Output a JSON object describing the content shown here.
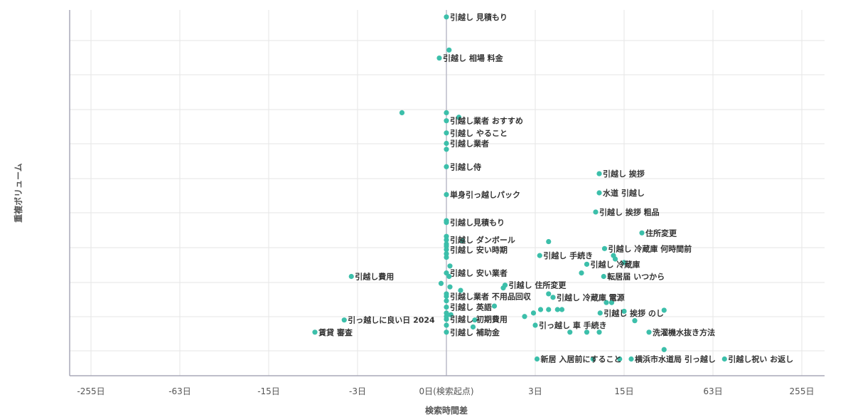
{
  "chart_data": {
    "type": "scatter",
    "title": "",
    "xlabel": "検索時間差",
    "ylabel": "重複ボリューム",
    "x_ticks": [
      {
        "label": "-255日",
        "v": -4
      },
      {
        "label": "-63日",
        "v": -3
      },
      {
        "label": "-15日",
        "v": -2
      },
      {
        "label": "-3日",
        "v": -1
      },
      {
        "label": "0日(検索起点)",
        "v": 0
      },
      {
        "label": "3日",
        "v": 1
      },
      {
        "label": "15日",
        "v": 2
      },
      {
        "label": "63日",
        "v": 3
      },
      {
        "label": "255日",
        "v": 4
      }
    ],
    "xlim": [
      -4.25,
      4.25
    ],
    "ylim": [
      0,
      10.5
    ],
    "grid": true,
    "point_color": "#3cbfaa",
    "labeled_points": [
      {
        "label": "引越し 見積もり",
        "x": 0.0,
        "y": 10.3
      },
      {
        "label": "引越し 相場 料金",
        "x": -0.08,
        "y": 9.12
      },
      {
        "label": "引越し業者 おすすめ",
        "x": 0.0,
        "y": 7.32
      },
      {
        "label": "引越し やること",
        "x": 0.0,
        "y": 6.97
      },
      {
        "label": "引越し業者",
        "x": 0.0,
        "y": 6.67
      },
      {
        "label": "引越し侍",
        "x": 0.0,
        "y": 6.0
      },
      {
        "label": "単身引っ越しパック",
        "x": 0.0,
        "y": 5.2
      },
      {
        "label": "引越し 挨拶",
        "x": 1.72,
        "y": 5.8
      },
      {
        "label": "水道 引越し",
        "x": 1.72,
        "y": 5.25
      },
      {
        "label": "引越し 挨拶 粗品",
        "x": 1.68,
        "y": 4.7
      },
      {
        "label": "引越し見積もり",
        "x": 0.0,
        "y": 4.4
      },
      {
        "label": "住所変更",
        "x": 2.2,
        "y": 4.1
      },
      {
        "label": "引越し ダンボール",
        "x": 0.0,
        "y": 3.9
      },
      {
        "label": "引越し 冷蔵庫 何時間前",
        "x": 1.78,
        "y": 3.65
      },
      {
        "label": "引越し 安い時期",
        "x": 0.0,
        "y": 3.62
      },
      {
        "label": "引越し 手続き",
        "x": 1.05,
        "y": 3.45
      },
      {
        "label": "引越し 冷蔵庫",
        "x": 1.58,
        "y": 3.2
      },
      {
        "label": "引越し費用",
        "x": -1.07,
        "y": 2.85
      },
      {
        "label": "引越し 安い業者",
        "x": 0.0,
        "y": 2.95
      },
      {
        "label": "転居届 いつから",
        "x": 1.77,
        "y": 2.85
      },
      {
        "label": "引越し 住所変更",
        "x": 0.66,
        "y": 2.6
      },
      {
        "label": "引越し業者 不用品回収",
        "x": 0.0,
        "y": 2.28
      },
      {
        "label": "引越し 冷蔵庫 電源",
        "x": 1.2,
        "y": 2.25
      },
      {
        "label": "引越し 英語",
        "x": 0.0,
        "y": 1.97
      },
      {
        "label": "引越し 挨拶 のし",
        "x": 1.73,
        "y": 1.8
      },
      {
        "label": "引っ越しに良い日 2024",
        "x": -1.15,
        "y": 1.6
      },
      {
        "label": "引越し 初期費用",
        "x": 0.0,
        "y": 1.62
      },
      {
        "label": "引っ越し 車 手続き",
        "x": 1.0,
        "y": 1.45
      },
      {
        "label": "賃貸 審査",
        "x": -1.48,
        "y": 1.25
      },
      {
        "label": "引越し 補助金",
        "x": 0.0,
        "y": 1.25
      },
      {
        "label": "洗濯機水抜き方法",
        "x": 2.28,
        "y": 1.25
      },
      {
        "label": "新居 入居前にすること",
        "x": 1.02,
        "y": 0.48
      },
      {
        "label": "横浜市水道局 引っ越し",
        "x": 2.08,
        "y": 0.48
      },
      {
        "label": "引越し祝い お返し",
        "x": 3.13,
        "y": 0.48
      }
    ],
    "unlabeled_points": [
      {
        "x": 0.03,
        "y": 9.35
      },
      {
        "x": -0.5,
        "y": 7.55
      },
      {
        "x": 0.0,
        "y": 7.55
      },
      {
        "x": 0.14,
        "y": 7.42
      },
      {
        "x": 0.0,
        "y": 6.5
      },
      {
        "x": 0.0,
        "y": 4.45
      },
      {
        "x": 0.0,
        "y": 4.0
      },
      {
        "x": 0.0,
        "y": 3.78
      },
      {
        "x": 0.0,
        "y": 3.72
      },
      {
        "x": 0.0,
        "y": 3.5
      },
      {
        "x": 0.0,
        "y": 3.4
      },
      {
        "x": 0.18,
        "y": 3.88
      },
      {
        "x": 1.15,
        "y": 3.85
      },
      {
        "x": 1.88,
        "y": 3.45
      },
      {
        "x": 1.9,
        "y": 3.35
      },
      {
        "x": 2.0,
        "y": 3.25
      },
      {
        "x": 1.52,
        "y": 2.95
      },
      {
        "x": 0.04,
        "y": 3.15
      },
      {
        "x": 0.03,
        "y": 2.85
      },
      {
        "x": -0.06,
        "y": 2.65
      },
      {
        "x": 0.04,
        "y": 2.55
      },
      {
        "x": 0.16,
        "y": 2.45
      },
      {
        "x": 0.64,
        "y": 2.52
      },
      {
        "x": 1.15,
        "y": 2.35
      },
      {
        "x": 1.8,
        "y": 2.1
      },
      {
        "x": 1.86,
        "y": 2.1
      },
      {
        "x": 0.0,
        "y": 2.35
      },
      {
        "x": 0.0,
        "y": 2.15
      },
      {
        "x": 0.54,
        "y": 2.0
      },
      {
        "x": 0.0,
        "y": 1.8
      },
      {
        "x": 0.0,
        "y": 1.7
      },
      {
        "x": 0.05,
        "y": 1.75
      },
      {
        "x": 0.88,
        "y": 1.7
      },
      {
        "x": 0.98,
        "y": 1.8
      },
      {
        "x": 1.06,
        "y": 1.9
      },
      {
        "x": 1.15,
        "y": 1.9
      },
      {
        "x": 1.25,
        "y": 1.9
      },
      {
        "x": 1.3,
        "y": 1.9
      },
      {
        "x": 2.0,
        "y": 1.85
      },
      {
        "x": 2.45,
        "y": 1.88
      },
      {
        "x": 2.12,
        "y": 1.58
      },
      {
        "x": 0.32,
        "y": 1.6
      },
      {
        "x": 0.0,
        "y": 1.45
      },
      {
        "x": 0.3,
        "y": 1.4
      },
      {
        "x": 1.39,
        "y": 1.25
      },
      {
        "x": 1.58,
        "y": 1.25
      },
      {
        "x": 1.72,
        "y": 1.25
      },
      {
        "x": 2.45,
        "y": 0.75
      },
      {
        "x": 1.65,
        "y": 0.48
      },
      {
        "x": 1.95,
        "y": 0.48
      }
    ]
  }
}
